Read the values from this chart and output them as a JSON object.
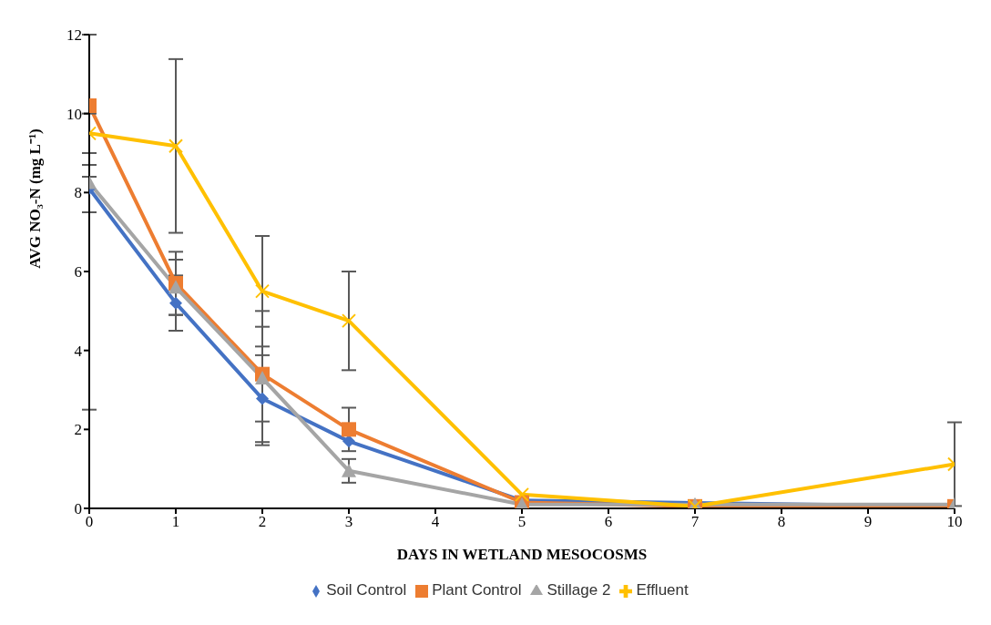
{
  "chart_data": {
    "type": "line",
    "xlabel": "DAYS IN WETLAND MESOCOSMS",
    "ylabel": "AVG NO₃-N (mg L⁻¹)",
    "x": [
      0,
      1,
      2,
      3,
      5,
      7,
      10
    ],
    "series": [
      {
        "name": "Soil Control",
        "color": "#4472c4",
        "marker": "diamond",
        "values": [
          8.1,
          5.2,
          2.78,
          1.7,
          0.2,
          null,
          0.05
        ],
        "errors": [
          0.6,
          0.7,
          1.1,
          null,
          null,
          null,
          null
        ]
      },
      {
        "name": "Plant Control",
        "color": "#ed7d31",
        "marker": "square",
        "values": [
          10.2,
          5.7,
          3.4,
          2.0,
          0.15,
          0.05,
          0.05
        ],
        "errors": [
          1.8,
          0.8,
          1.2,
          0.55,
          null,
          null,
          null
        ]
      },
      {
        "name": "Stillage 2",
        "color": "#a5a5a5",
        "marker": "triangle",
        "values": [
          8.25,
          5.6,
          3.3,
          0.95,
          0.1,
          0.1,
          0.1
        ],
        "errors": [
          [
            2.5,
            12
          ],
          0.7,
          1.7,
          0.3,
          null,
          null,
          null
        ]
      },
      {
        "name": "Effluent",
        "color": "#ffc000",
        "marker": "cross",
        "values": [
          9.5,
          9.18,
          5.5,
          4.75,
          0.35,
          0.05,
          1.12
        ],
        "errors": [
          0.5,
          2.2,
          1.4,
          1.25,
          null,
          null,
          1.06
        ]
      }
    ],
    "xlim": [
      0,
      10
    ],
    "xticks": [
      0,
      1,
      2,
      3,
      4,
      5,
      6,
      7,
      8,
      9,
      10
    ],
    "ylim": [
      0,
      12
    ],
    "yticks": [
      0,
      2,
      4,
      6,
      8,
      10,
      12
    ],
    "grid": false,
    "legend": "bottom",
    "line_style": "solid"
  }
}
